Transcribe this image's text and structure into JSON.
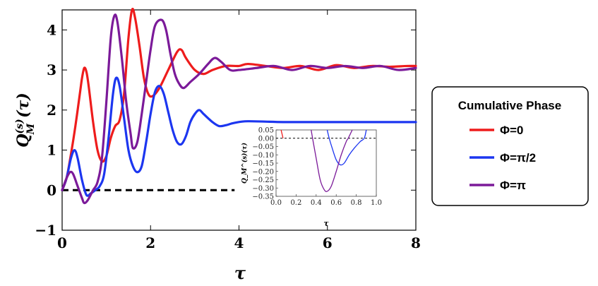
{
  "chart_data": [
    {
      "type": "line",
      "role": "main",
      "xlabel": "τ",
      "ylabel": "Q_M^(s)(τ)",
      "xlim": [
        0,
        8
      ],
      "ylim": [
        -1,
        4.5
      ],
      "xticks": [
        0,
        2,
        4,
        6,
        8
      ],
      "xtick_labels": [
        "0",
        "2",
        "4",
        "6",
        "8"
      ],
      "yticks": [
        -1,
        0,
        1,
        2,
        3,
        4
      ],
      "ytick_labels": [
        "−1",
        "0",
        "1",
        "2",
        "3",
        "4"
      ],
      "grid": false,
      "reference_line": {
        "y": 0,
        "x_from": 0,
        "x_to": 3.9,
        "style": "dashed"
      },
      "series": [
        {
          "name": "Φ=0",
          "color": "#ee1c1c",
          "points": [
            [
              0,
              0
            ],
            [
              0.1,
              0.3
            ],
            [
              0.2,
              0.9
            ],
            [
              0.3,
              1.6
            ],
            [
              0.4,
              2.4
            ],
            [
              0.45,
              2.8
            ],
            [
              0.5,
              3.05
            ],
            [
              0.55,
              2.95
            ],
            [
              0.6,
              2.6
            ],
            [
              0.7,
              1.7
            ],
            [
              0.8,
              1.0
            ],
            [
              0.9,
              0.72
            ],
            [
              1.0,
              0.85
            ],
            [
              1.1,
              1.3
            ],
            [
              1.2,
              1.6
            ],
            [
              1.3,
              1.75
            ],
            [
              1.4,
              2.4
            ],
            [
              1.5,
              3.8
            ],
            [
              1.58,
              4.5
            ],
            [
              1.65,
              4.3
            ],
            [
              1.75,
              3.6
            ],
            [
              1.85,
              2.8
            ],
            [
              1.95,
              2.4
            ],
            [
              2.05,
              2.35
            ],
            [
              2.2,
              2.55
            ],
            [
              2.4,
              3.0
            ],
            [
              2.6,
              3.45
            ],
            [
              2.7,
              3.5
            ],
            [
              2.8,
              3.3
            ],
            [
              3.0,
              3.0
            ],
            [
              3.2,
              2.9
            ],
            [
              3.4,
              3.0
            ],
            [
              3.7,
              3.1
            ],
            [
              4.0,
              3.1
            ],
            [
              4.2,
              3.15
            ],
            [
              4.6,
              3.1
            ],
            [
              5.0,
              3.05
            ],
            [
              5.4,
              3.1
            ],
            [
              5.8,
              3.0
            ],
            [
              6.2,
              3.12
            ],
            [
              6.6,
              3.05
            ],
            [
              7.0,
              3.1
            ],
            [
              7.4,
              3.08
            ],
            [
              7.8,
              3.1
            ],
            [
              8.0,
              3.1
            ]
          ]
        },
        {
          "name": "Φ=π/2",
          "color": "#1c36f0",
          "points": [
            [
              0,
              0
            ],
            [
              0.1,
              0.3
            ],
            [
              0.2,
              0.8
            ],
            [
              0.28,
              1.0
            ],
            [
              0.35,
              0.8
            ],
            [
              0.45,
              0.25
            ],
            [
              0.55,
              -0.12
            ],
            [
              0.65,
              -0.08
            ],
            [
              0.75,
              0.0
            ],
            [
              0.85,
              0.1
            ],
            [
              0.95,
              0.4
            ],
            [
              1.05,
              1.3
            ],
            [
              1.15,
              2.4
            ],
            [
              1.22,
              2.8
            ],
            [
              1.3,
              2.6
            ],
            [
              1.4,
              1.8
            ],
            [
              1.5,
              1.0
            ],
            [
              1.6,
              0.6
            ],
            [
              1.7,
              0.45
            ],
            [
              1.8,
              0.6
            ],
            [
              1.9,
              1.2
            ],
            [
              2.0,
              1.9
            ],
            [
              2.1,
              2.45
            ],
            [
              2.2,
              2.6
            ],
            [
              2.3,
              2.4
            ],
            [
              2.4,
              1.95
            ],
            [
              2.5,
              1.5
            ],
            [
              2.6,
              1.2
            ],
            [
              2.7,
              1.15
            ],
            [
              2.8,
              1.35
            ],
            [
              2.9,
              1.7
            ],
            [
              3.0,
              1.9
            ],
            [
              3.1,
              2.0
            ],
            [
              3.2,
              1.9
            ],
            [
              3.4,
              1.7
            ],
            [
              3.55,
              1.6
            ],
            [
              3.7,
              1.62
            ],
            [
              3.9,
              1.68
            ],
            [
              4.2,
              1.72
            ],
            [
              5.0,
              1.7
            ],
            [
              6.0,
              1.7
            ],
            [
              7.0,
              1.7
            ],
            [
              8.0,
              1.7
            ]
          ]
        },
        {
          "name": "Φ=π",
          "color": "#7b1a99",
          "points": [
            [
              0,
              0
            ],
            [
              0.1,
              0.3
            ],
            [
              0.18,
              0.45
            ],
            [
              0.25,
              0.4
            ],
            [
              0.35,
              0.1
            ],
            [
              0.45,
              -0.2
            ],
            [
              0.5,
              -0.32
            ],
            [
              0.58,
              -0.25
            ],
            [
              0.7,
              0.0
            ],
            [
              0.8,
              0.2
            ],
            [
              0.9,
              0.8
            ],
            [
              1.0,
              2.2
            ],
            [
              1.1,
              3.8
            ],
            [
              1.18,
              4.35
            ],
            [
              1.25,
              4.2
            ],
            [
              1.35,
              3.3
            ],
            [
              1.45,
              2.2
            ],
            [
              1.55,
              1.4
            ],
            [
              1.6,
              1.05
            ],
            [
              1.7,
              1.2
            ],
            [
              1.8,
              1.9
            ],
            [
              1.9,
              2.7
            ],
            [
              2.0,
              3.5
            ],
            [
              2.1,
              4.1
            ],
            [
              2.25,
              4.25
            ],
            [
              2.35,
              4.0
            ],
            [
              2.45,
              3.4
            ],
            [
              2.55,
              2.9
            ],
            [
              2.65,
              2.65
            ],
            [
              2.75,
              2.55
            ],
            [
              2.9,
              2.7
            ],
            [
              3.1,
              2.9
            ],
            [
              3.3,
              3.15
            ],
            [
              3.45,
              3.3
            ],
            [
              3.6,
              3.2
            ],
            [
              3.8,
              3.0
            ],
            [
              4.0,
              3.0
            ],
            [
              4.4,
              3.05
            ],
            [
              4.8,
              3.1
            ],
            [
              5.2,
              3.0
            ],
            [
              5.6,
              3.1
            ],
            [
              6.0,
              3.05
            ],
            [
              6.4,
              3.1
            ],
            [
              6.8,
              3.05
            ],
            [
              7.2,
              3.1
            ],
            [
              7.6,
              3.0
            ],
            [
              8.0,
              3.05
            ]
          ]
        }
      ]
    },
    {
      "type": "line",
      "role": "inset",
      "xlabel": "τ",
      "ylabel": "Q_M^(s)(τ)",
      "xlim": [
        0,
        1.0
      ],
      "ylim": [
        -0.35,
        0.05
      ],
      "xticks": [
        0.0,
        0.2,
        0.4,
        0.6,
        0.8,
        1.0
      ],
      "xtick_labels": [
        "0.0",
        "0.2",
        "0.4",
        "0.6",
        "0.8",
        "1.0"
      ],
      "yticks": [
        0.05,
        0.0,
        -0.05,
        -0.1,
        -0.15,
        -0.2,
        -0.25,
        -0.3,
        -0.35
      ],
      "ytick_labels": [
        "0.05",
        "0.00",
        "−0.05",
        "−0.10",
        "−0.15",
        "−0.20",
        "−0.25",
        "−0.30",
        "−0.35"
      ],
      "reference_line": {
        "y": 0,
        "style": "dashed"
      },
      "series": [
        {
          "name": "Φ=0",
          "color": "#ee1c1c",
          "points": [
            [
              0.05,
              0.05
            ],
            [
              0.07,
              0.0
            ]
          ]
        },
        {
          "name": "Φ=π/2",
          "color": "#1c36f0",
          "points": [
            [
              0.51,
              0.05
            ],
            [
              0.53,
              0.0
            ],
            [
              0.56,
              -0.06
            ],
            [
              0.6,
              -0.13
            ],
            [
              0.64,
              -0.16
            ],
            [
              0.68,
              -0.15
            ],
            [
              0.73,
              -0.1
            ],
            [
              0.78,
              -0.06
            ],
            [
              0.84,
              -0.02
            ],
            [
              0.88,
              0.0
            ],
            [
              0.9,
              0.05
            ]
          ]
        },
        {
          "name": "Φ=π",
          "color": "#7b1a99",
          "points": [
            [
              0.35,
              0.05
            ],
            [
              0.37,
              -0.02
            ],
            [
              0.4,
              -0.12
            ],
            [
              0.44,
              -0.25
            ],
            [
              0.48,
              -0.31
            ],
            [
              0.51,
              -0.32
            ],
            [
              0.55,
              -0.29
            ],
            [
              0.6,
              -0.2
            ],
            [
              0.65,
              -0.1
            ],
            [
              0.7,
              -0.02
            ],
            [
              0.72,
              0.0
            ],
            [
              0.76,
              0.05
            ]
          ]
        }
      ]
    }
  ],
  "legend": {
    "title": "Cumulative Phase",
    "entries": [
      {
        "label": "Φ=0",
        "color": "#ee1c1c"
      },
      {
        "label": "Φ=π/2",
        "color": "#1c36f0"
      },
      {
        "label": "Φ=π",
        "color": "#7b1a99"
      }
    ]
  }
}
